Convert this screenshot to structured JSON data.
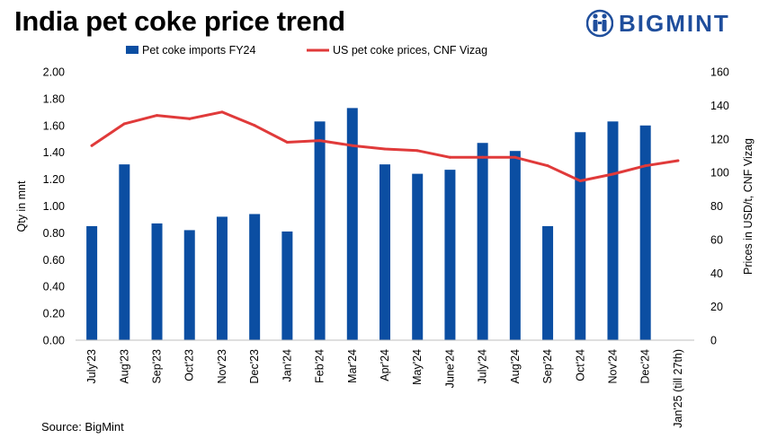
{
  "header": {
    "title": "India pet coke price trend",
    "brand": "BIGMINT"
  },
  "footer": {
    "source": "Source: BigMint"
  },
  "colors": {
    "bars": "#0b4ea2",
    "line": "#e03a3a",
    "brand": "#1f4e9c"
  },
  "icons": {
    "logo": "bigmint-logo-icon"
  },
  "chart_data": {
    "type": "bar",
    "categories": [
      "July'23",
      "Aug'23",
      "Sep'23",
      "Oct'23",
      "Nov'23",
      "Dec'23",
      "Jan'24",
      "Feb'24",
      "Mar'24",
      "Apr'24",
      "May'24",
      "June'24",
      "July'24",
      "Aug'24",
      "Sep'24",
      "Oct'24",
      "Nov'24",
      "Dec'24",
      "Jan'25 (till 27th)"
    ],
    "series": [
      {
        "name": "Pet coke imports FY24",
        "type": "bar",
        "axis": "left",
        "values": [
          0.85,
          1.31,
          0.87,
          0.82,
          0.92,
          0.94,
          0.81,
          1.63,
          1.73,
          1.31,
          1.24,
          1.27,
          1.47,
          1.41,
          0.85,
          1.55,
          1.63,
          1.6,
          null
        ]
      },
      {
        "name": "US pet coke prices, CNF Vizag",
        "type": "line",
        "axis": "right",
        "values": [
          116,
          129,
          134,
          132,
          136,
          128,
          118,
          119,
          116,
          114,
          113,
          109,
          109,
          109,
          104,
          95,
          99,
          104,
          107
        ]
      }
    ],
    "ylabel": "Qty in mnt",
    "y2label": "Prices in USD/t, CNF Vizag",
    "ylim": [
      0,
      2.0
    ],
    "yticks": [
      "0.00",
      "0.20",
      "0.40",
      "0.60",
      "0.80",
      "1.00",
      "1.20",
      "1.40",
      "1.60",
      "1.80",
      "2.00"
    ],
    "y2lim": [
      0,
      160
    ],
    "y2ticks": [
      "0",
      "20",
      "40",
      "60",
      "80",
      "100",
      "120",
      "140",
      "160"
    ],
    "grid": false,
    "legend": "top"
  }
}
